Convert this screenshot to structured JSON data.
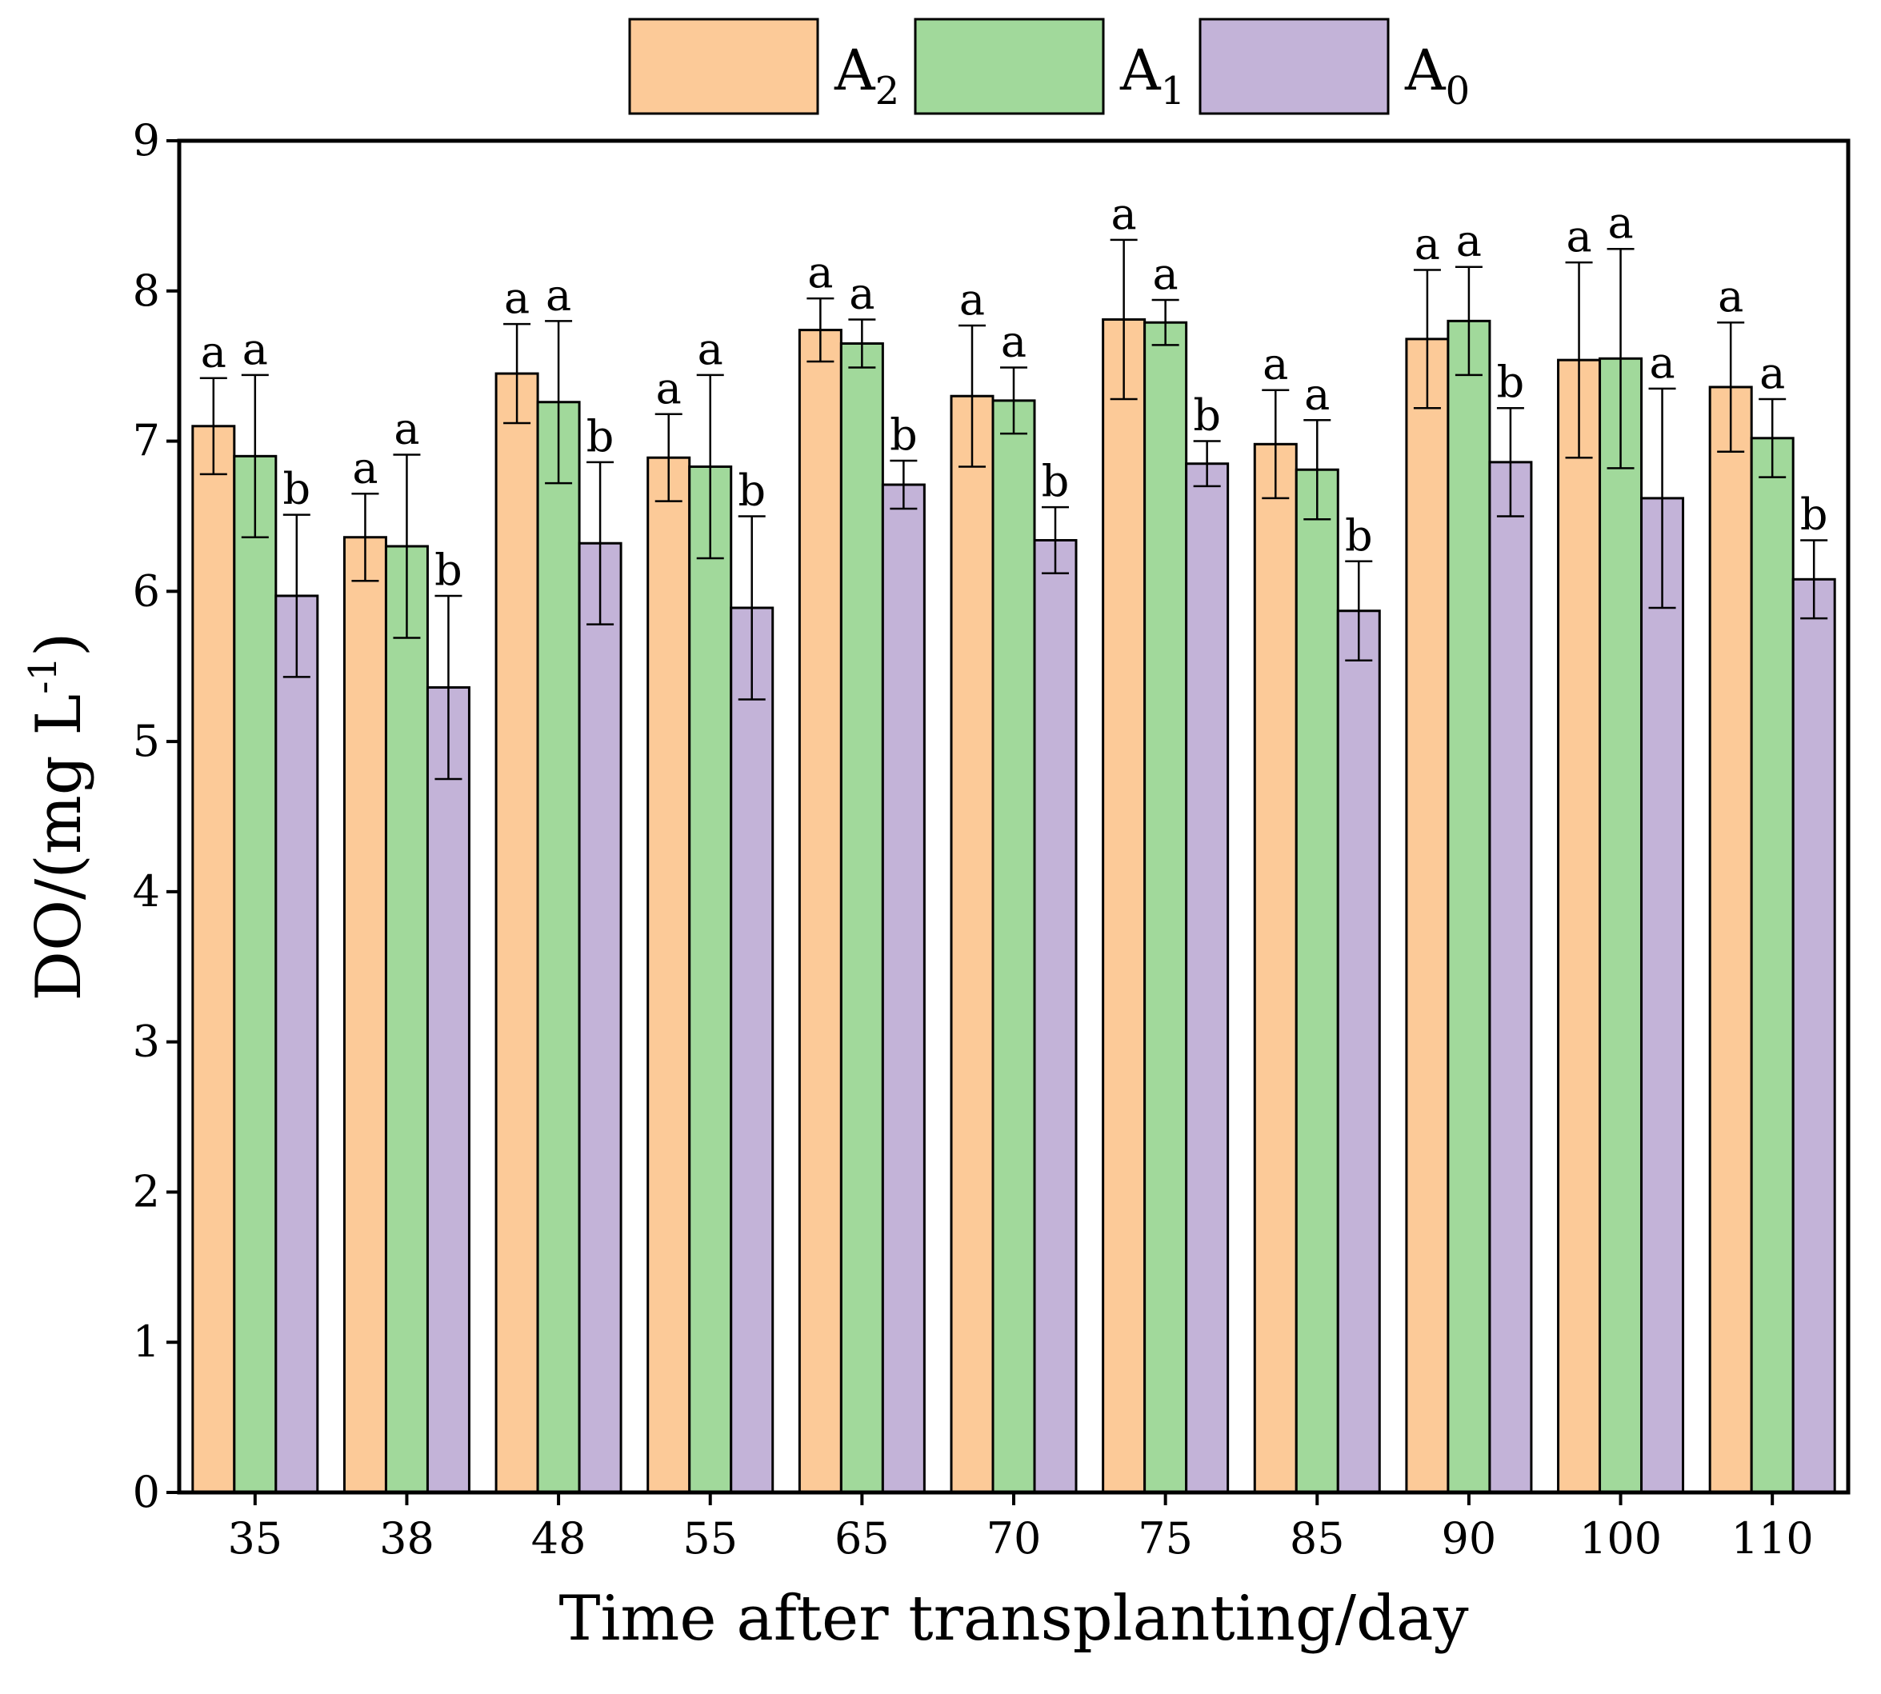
{
  "chart_data": {
    "type": "bar",
    "title": "",
    "xlabel": "Time after transplanting/day",
    "ylabel": {
      "main": "DO/(mg L",
      "superscript": "-1",
      "close": ")"
    },
    "categories": [
      "35",
      "38",
      "48",
      "55",
      "65",
      "70",
      "75",
      "85",
      "90",
      "100",
      "110"
    ],
    "ylim": [
      0,
      9
    ],
    "yticks": [
      "0",
      "1",
      "2",
      "3",
      "4",
      "5",
      "6",
      "7",
      "8",
      "9"
    ],
    "grid": false,
    "legend_position": "top-center",
    "series": [
      {
        "name": "A",
        "subscript": "2",
        "color": "#FCCA98",
        "values": [
          7.1,
          6.36,
          7.45,
          6.89,
          7.74,
          7.3,
          7.81,
          6.98,
          7.68,
          7.54,
          7.36
        ],
        "errors": [
          0.32,
          0.29,
          0.33,
          0.29,
          0.21,
          0.47,
          0.53,
          0.36,
          0.46,
          0.65,
          0.43
        ],
        "letters": [
          "a",
          "a",
          "a",
          "a",
          "a",
          "a",
          "a",
          "a",
          "a",
          "a",
          "a"
        ]
      },
      {
        "name": "A",
        "subscript": "1",
        "color": "#A1D99B",
        "values": [
          6.9,
          6.3,
          7.26,
          6.83,
          7.65,
          7.27,
          7.79,
          6.81,
          7.8,
          7.55,
          7.02
        ],
        "errors": [
          0.54,
          0.61,
          0.54,
          0.61,
          0.16,
          0.22,
          0.15,
          0.33,
          0.36,
          0.73,
          0.26
        ],
        "letters": [
          "a",
          "a",
          "a",
          "a",
          "a",
          "a",
          "a",
          "a",
          "a",
          "a",
          "a"
        ]
      },
      {
        "name": "A",
        "subscript": "0",
        "color": "#C3B3D8",
        "values": [
          5.97,
          5.36,
          6.32,
          5.89,
          6.71,
          6.34,
          6.85,
          5.87,
          6.86,
          6.62,
          6.08
        ],
        "errors": [
          0.54,
          0.61,
          0.54,
          0.61,
          0.16,
          0.22,
          0.15,
          0.33,
          0.36,
          0.73,
          0.26
        ],
        "letters": [
          "b",
          "b",
          "b",
          "b",
          "b",
          "b",
          "b",
          "b",
          "b",
          "a",
          "b"
        ]
      }
    ]
  }
}
